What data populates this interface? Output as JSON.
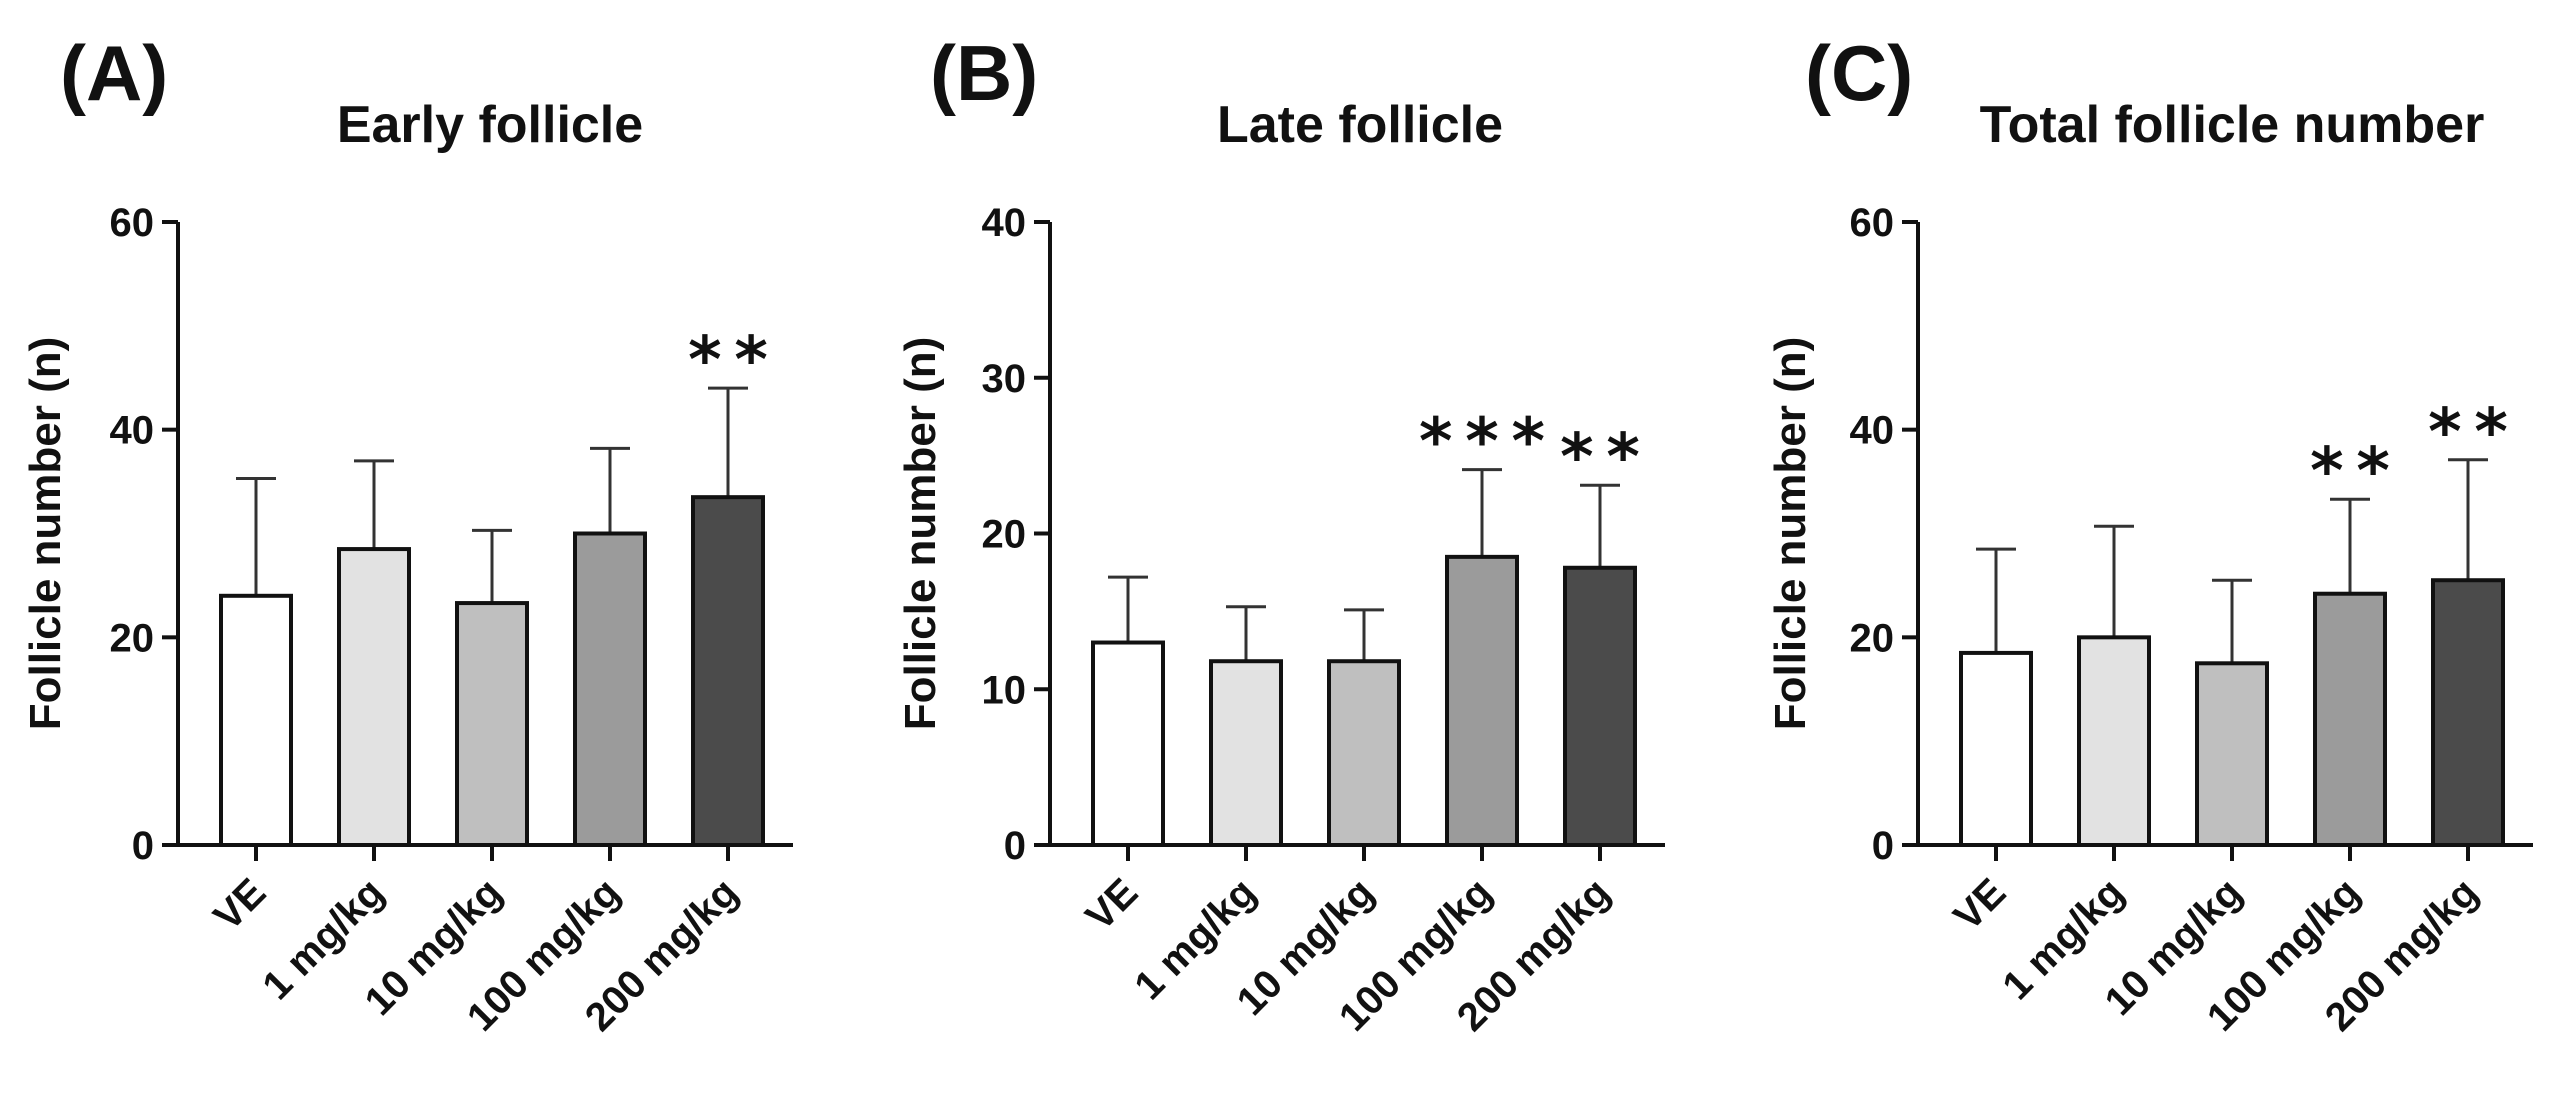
{
  "chart_data": [
    {
      "type": "bar",
      "panel": "(A)",
      "title": "Early follicle",
      "ylabel": "Follicle number  (n)",
      "xlabel": "",
      "ylim": [
        0,
        60
      ],
      "yticks": [
        "0",
        "20",
        "40",
        "60"
      ],
      "categories": [
        "VE",
        "1 mg/kg",
        "10 mg/kg",
        "100 mg/kg",
        "200 mg/kg"
      ],
      "values": [
        24,
        28.5,
        23.3,
        30,
        33.5
      ],
      "errors": [
        11.3,
        8.5,
        7,
        8.2,
        10.5
      ],
      "significance": [
        "",
        "",
        "",
        "",
        "**"
      ],
      "colors": [
        "#ffffff",
        "#e2e2e2",
        "#bfbfbf",
        "#9b9b9b",
        "#4b4b4b"
      ]
    },
    {
      "type": "bar",
      "panel": "(B)",
      "title": "Late follicle",
      "ylabel": "Follicle number  (n)",
      "xlabel": "",
      "ylim": [
        0,
        40
      ],
      "yticks": [
        "0",
        "10",
        "20",
        "30",
        "40"
      ],
      "categories": [
        "VE",
        "1 mg/kg",
        "10 mg/kg",
        "100 mg/kg",
        "200 mg/kg"
      ],
      "values": [
        13,
        11.8,
        11.8,
        18.5,
        17.8
      ],
      "errors": [
        4.2,
        3.5,
        3.3,
        5.6,
        5.3
      ],
      "significance": [
        "",
        "",
        "",
        "***",
        "**"
      ],
      "colors": [
        "#ffffff",
        "#e2e2e2",
        "#bfbfbf",
        "#9b9b9b",
        "#4b4b4b"
      ]
    },
    {
      "type": "bar",
      "panel": "(C)",
      "title": "Total follicle number",
      "ylabel": "Follicle number  (n)",
      "xlabel": "",
      "ylim": [
        0,
        60
      ],
      "yticks": [
        "0",
        "20",
        "40",
        "60"
      ],
      "categories": [
        "VE",
        "1 mg/kg",
        "10 mg/kg",
        "100 mg/kg",
        "200 mg/kg"
      ],
      "values": [
        18.5,
        20,
        17.5,
        24.2,
        25.5
      ],
      "errors": [
        10,
        10.7,
        8,
        9.1,
        11.6
      ],
      "significance": [
        "",
        "",
        "",
        "**",
        "**"
      ],
      "colors": [
        "#ffffff",
        "#e2e2e2",
        "#bfbfbf",
        "#9b9b9b",
        "#4b4b4b"
      ]
    }
  ]
}
